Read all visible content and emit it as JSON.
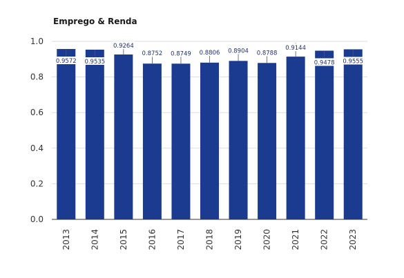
{
  "title": "Emprego & Renda",
  "colors": {
    "bar": "#1a3b8f",
    "grid": "#dddddd",
    "axis": "#333333",
    "label_bg": "#ffffff"
  },
  "chart_data": {
    "type": "bar",
    "title": "Emprego & Renda",
    "categories": [
      "2013",
      "2014",
      "2015",
      "2016",
      "2017",
      "2018",
      "2019",
      "2020",
      "2021",
      "2022",
      "2023"
    ],
    "values": [
      0.9572,
      0.9535,
      0.9264,
      0.8752,
      0.8749,
      0.8806,
      0.8904,
      0.8788,
      0.9144,
      0.9478,
      0.9555
    ],
    "data_labels": [
      "0.9572",
      "0.9535",
      "0.9264",
      "0.8752",
      "0.8749",
      "0.8806",
      "0.8904",
      "0.8788",
      "0.9144",
      "0.9478",
      "0.9555"
    ],
    "xlabel": "",
    "ylabel": "",
    "ylim": [
      0,
      1.0
    ],
    "yticks": [
      0.0,
      0.2,
      0.4,
      0.6,
      0.8,
      1.0
    ],
    "ytick_labels": [
      "0.0",
      "0.2",
      "0.4",
      "0.6",
      "0.8",
      "1.0"
    ],
    "grid": true,
    "legend": "none"
  }
}
